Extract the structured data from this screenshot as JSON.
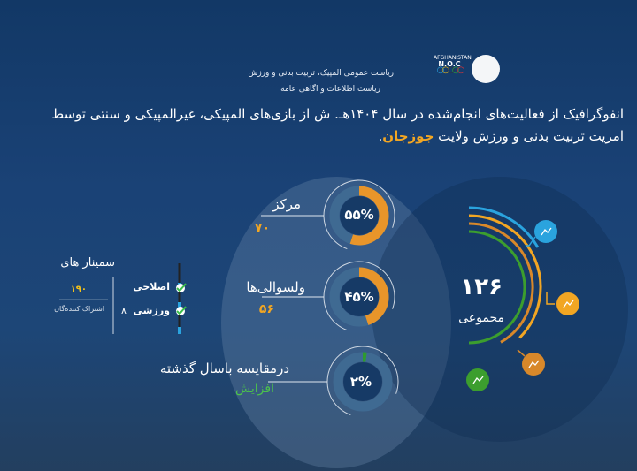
{
  "header": {
    "org_line1": "ریاست عمومی المپیک، تربیت بدنی و ورزش",
    "org_line2": "ریاست اطلاعات و اگاهی عامه",
    "noc_logo_text": "AFGHANISTAN N.O.C"
  },
  "title": {
    "line1": "انفوگرافیک از فعالیت‌های انجام‌شده در سال ۱۴۰۴هـ. ش از بازی‌های المپیکی، غیرالمپیکی و سنتی توسط",
    "line2_prefix": "امریت تربیت بدنی و ورزش ولایت",
    "line2_highlight": "جوزجان",
    "line2_suffix": "."
  },
  "stats": [
    {
      "label": "مرکز",
      "value": "۷۰",
      "percent_label": "۵۵%",
      "percent": 55,
      "color": "#e8952a"
    },
    {
      "label": "ولسوالی‌ها",
      "value": "۵۶",
      "percent_label": "۴۵%",
      "percent": 45,
      "color": "#e8952a"
    },
    {
      "label": "درمقایسه باسال گذشته",
      "value": "افزایش",
      "percent_label": "۲%",
      "percent": 2,
      "color": "#2e9a2e"
    }
  ],
  "seminars": {
    "title": "سمینار های",
    "items": [
      {
        "label": "اصلاحی",
        "count": ""
      },
      {
        "label": "ورزشی",
        "count": "۸"
      }
    ],
    "participants_value": "۱۹۰",
    "participants_label": "اشتراک کننده‌گان"
  },
  "total": {
    "value": "۱۲۶",
    "label": "مجموعی"
  },
  "colors": {
    "accent_orange": "#f2a623",
    "accent_green": "#4cc24c",
    "blue": "#2aa3de",
    "dark_orange": "#d8882a",
    "green": "#3c9e2e"
  }
}
